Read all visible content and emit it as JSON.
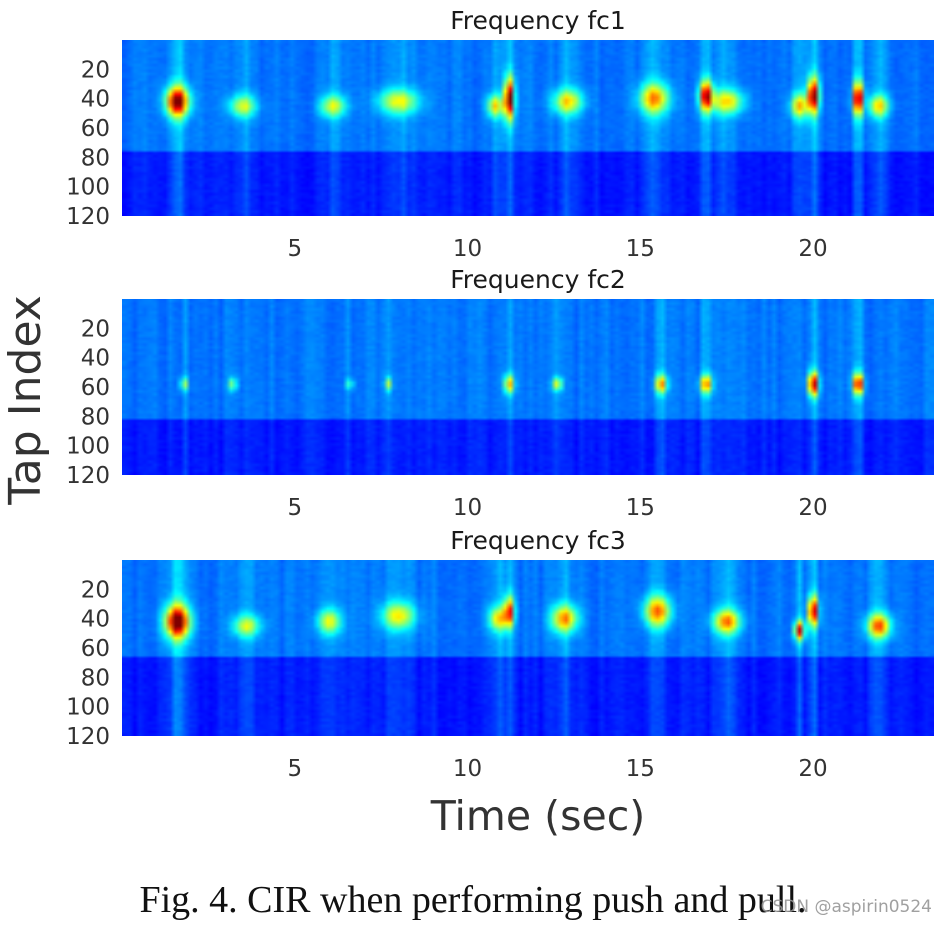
{
  "chart_data": [
    {
      "type": "heatmap",
      "title": "Frequency fc1",
      "xlabel": "Time (sec)",
      "ylabel": "Tap Index",
      "xlim": [
        0,
        23.5
      ],
      "ylim": [
        0,
        120
      ],
      "xticks": [
        5,
        10,
        15,
        20
      ],
      "yticks": [
        20,
        40,
        60,
        80,
        100,
        120
      ],
      "colormap": "jet",
      "baseline_band_taps": [
        0,
        75
      ],
      "bursts": [
        {
          "t": 1.6,
          "tap": 42,
          "width": 0.7,
          "spread": 22,
          "intensity": 0.95
        },
        {
          "t": 3.5,
          "tap": 45,
          "width": 0.8,
          "spread": 16,
          "intensity": 0.42
        },
        {
          "t": 6.1,
          "tap": 45,
          "width": 0.8,
          "spread": 16,
          "intensity": 0.42
        },
        {
          "t": 8.0,
          "tap": 42,
          "width": 1.2,
          "spread": 18,
          "intensity": 0.45
        },
        {
          "t": 10.8,
          "tap": 45,
          "width": 0.5,
          "spread": 16,
          "intensity": 0.5
        },
        {
          "t": 11.2,
          "tap": 40,
          "width": 0.3,
          "spread": 30,
          "intensity": 0.95
        },
        {
          "t": 12.9,
          "tap": 42,
          "width": 0.9,
          "spread": 18,
          "intensity": 0.5
        },
        {
          "t": 15.4,
          "tap": 40,
          "width": 0.9,
          "spread": 22,
          "intensity": 0.6
        },
        {
          "t": 16.9,
          "tap": 38,
          "width": 0.4,
          "spread": 22,
          "intensity": 0.85
        },
        {
          "t": 17.5,
          "tap": 42,
          "width": 1.0,
          "spread": 18,
          "intensity": 0.5
        },
        {
          "t": 19.6,
          "tap": 45,
          "width": 0.5,
          "spread": 18,
          "intensity": 0.55
        },
        {
          "t": 20.0,
          "tap": 38,
          "width": 0.35,
          "spread": 26,
          "intensity": 0.92
        },
        {
          "t": 21.3,
          "tap": 40,
          "width": 0.3,
          "spread": 24,
          "intensity": 0.95
        },
        {
          "t": 21.9,
          "tap": 45,
          "width": 0.6,
          "spread": 16,
          "intensity": 0.5
        }
      ]
    },
    {
      "type": "heatmap",
      "title": "Frequency fc2",
      "xlabel": "Time (sec)",
      "ylabel": "Tap Index",
      "xlim": [
        0,
        23.5
      ],
      "ylim": [
        0,
        120
      ],
      "xticks": [
        5,
        10,
        15,
        20
      ],
      "yticks": [
        20,
        40,
        60,
        80,
        100,
        120
      ],
      "colormap": "jet",
      "baseline_band_taps": [
        0,
        82
      ],
      "bursts": [
        {
          "t": 1.8,
          "tap": 58,
          "width": 0.25,
          "spread": 10,
          "intensity": 0.35
        },
        {
          "t": 3.2,
          "tap": 58,
          "width": 0.25,
          "spread": 10,
          "intensity": 0.35
        },
        {
          "t": 6.6,
          "tap": 58,
          "width": 0.2,
          "spread": 8,
          "intensity": 0.3
        },
        {
          "t": 7.7,
          "tap": 58,
          "width": 0.2,
          "spread": 10,
          "intensity": 0.38
        },
        {
          "t": 11.2,
          "tap": 58,
          "width": 0.3,
          "spread": 14,
          "intensity": 0.55
        },
        {
          "t": 12.6,
          "tap": 58,
          "width": 0.3,
          "spread": 10,
          "intensity": 0.45
        },
        {
          "t": 15.6,
          "tap": 58,
          "width": 0.35,
          "spread": 14,
          "intensity": 0.6
        },
        {
          "t": 16.9,
          "tap": 58,
          "width": 0.35,
          "spread": 14,
          "intensity": 0.65
        },
        {
          "t": 20.0,
          "tap": 58,
          "width": 0.3,
          "spread": 18,
          "intensity": 0.9
        },
        {
          "t": 21.3,
          "tap": 58,
          "width": 0.3,
          "spread": 16,
          "intensity": 0.85
        }
      ]
    },
    {
      "type": "heatmap",
      "title": "Frequency fc3",
      "xlabel": "Time (sec)",
      "ylabel": "Tap Index",
      "xlim": [
        0,
        23.5
      ],
      "ylim": [
        0,
        120
      ],
      "xticks": [
        5,
        10,
        15,
        20
      ],
      "yticks": [
        20,
        40,
        60,
        80,
        100,
        120
      ],
      "colormap": "jet",
      "baseline_band_taps": [
        0,
        65
      ],
      "bursts": [
        {
          "t": 1.6,
          "tap": 42,
          "width": 0.75,
          "spread": 24,
          "intensity": 0.97
        },
        {
          "t": 3.6,
          "tap": 45,
          "width": 0.8,
          "spread": 16,
          "intensity": 0.42
        },
        {
          "t": 6.0,
          "tap": 42,
          "width": 0.7,
          "spread": 18,
          "intensity": 0.45
        },
        {
          "t": 8.0,
          "tap": 38,
          "width": 1.0,
          "spread": 20,
          "intensity": 0.48
        },
        {
          "t": 10.9,
          "tap": 40,
          "width": 0.6,
          "spread": 18,
          "intensity": 0.5
        },
        {
          "t": 11.2,
          "tap": 35,
          "width": 0.3,
          "spread": 22,
          "intensity": 0.7
        },
        {
          "t": 12.8,
          "tap": 40,
          "width": 0.8,
          "spread": 20,
          "intensity": 0.6
        },
        {
          "t": 15.5,
          "tap": 35,
          "width": 0.8,
          "spread": 22,
          "intensity": 0.65
        },
        {
          "t": 17.5,
          "tap": 42,
          "width": 0.8,
          "spread": 18,
          "intensity": 0.62
        },
        {
          "t": 19.6,
          "tap": 48,
          "width": 0.3,
          "spread": 14,
          "intensity": 0.8
        },
        {
          "t": 20.0,
          "tap": 35,
          "width": 0.3,
          "spread": 22,
          "intensity": 0.85
        },
        {
          "t": 21.9,
          "tap": 45,
          "width": 0.7,
          "spread": 18,
          "intensity": 0.68
        }
      ]
    }
  ],
  "figure": {
    "ylabel": "Tap Index",
    "xlabel": "Time (sec)",
    "caption": "Fig. 4.  CIR when performing push and pull.",
    "watermark": "CSDN @aspirin0524"
  }
}
